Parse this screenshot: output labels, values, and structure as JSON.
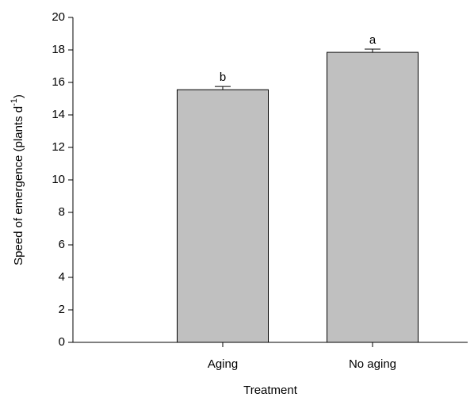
{
  "chart_data": {
    "type": "bar",
    "x_label": "Treatment",
    "y_label": [
      "Speed of emergence (plants d",
      "-1",
      ")"
    ],
    "categories": [
      "Aging",
      "No aging"
    ],
    "values": [
      15.55,
      17.85
    ],
    "errors": [
      0.2,
      0.2
    ],
    "annotations": [
      "b",
      "a"
    ],
    "color": "#c0c0c0",
    "ylim": [
      0,
      20
    ],
    "yticks": [
      0,
      2,
      4,
      6,
      8,
      10,
      12,
      14,
      16,
      18,
      20
    ],
    "grid": false
  }
}
